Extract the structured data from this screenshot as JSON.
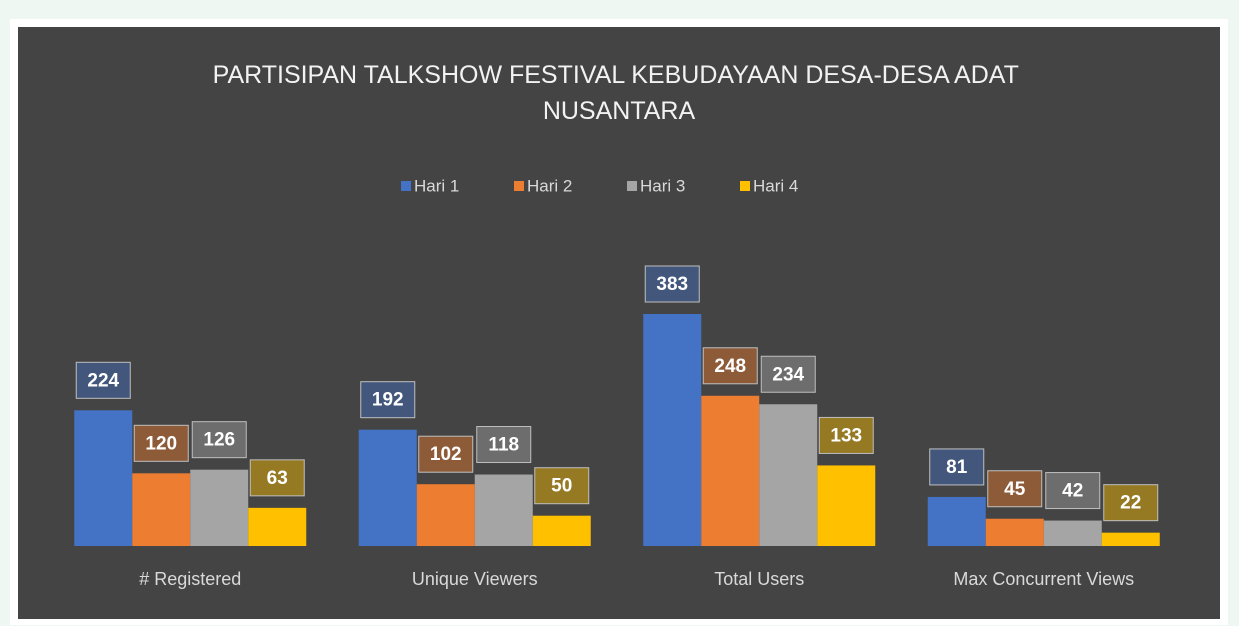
{
  "chart_data": {
    "type": "bar",
    "title": "PARTISIPAN TALKSHOW FESTIVAL KEBUDAYAAN DESA-DESA ADAT NUSANTARA",
    "categories": [
      "# Registered",
      "Unique Viewers",
      "Total Users",
      "Max Concurrent Views"
    ],
    "series": [
      {
        "name": "Hari 1",
        "color": "#4472c4",
        "values": [
          224,
          192,
          383,
          81
        ]
      },
      {
        "name": "Hari 2",
        "color": "#ed7d31",
        "values": [
          120,
          102,
          248,
          45
        ]
      },
      {
        "name": "Hari 3",
        "color": "#a5a5a5",
        "values": [
          126,
          118,
          234,
          42
        ]
      },
      {
        "name": "Hari 4",
        "color": "#ffc000",
        "values": [
          63,
          50,
          133,
          22
        ]
      }
    ],
    "legend": "top",
    "data_labels": true,
    "grid": false
  }
}
